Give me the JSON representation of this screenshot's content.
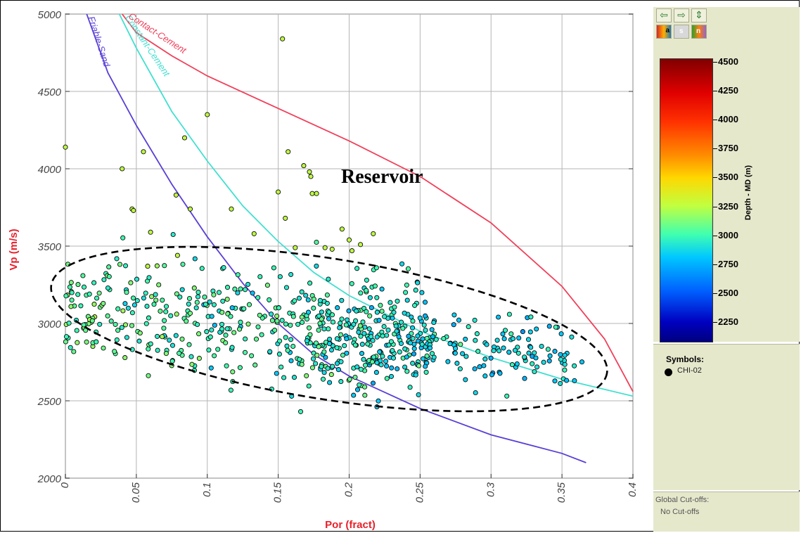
{
  "chart_data": {
    "type": "scatter",
    "xlabel": "Por  (fract)",
    "ylabel": "Vp  (m/s)",
    "xlim": [
      0,
      0.4
    ],
    "ylim": [
      2000,
      5000
    ],
    "x_ticks": [
      "0",
      "0.05",
      "0.1",
      "0.15",
      "0.2",
      "0.25",
      "0.3",
      "0.35",
      "0.4"
    ],
    "y_ticks": [
      "2000",
      "2500",
      "3000",
      "3500",
      "4000",
      "4500",
      "5000"
    ],
    "grid": true,
    "annotation": "Reservoir",
    "curves": [
      {
        "name": "Friable-Sand",
        "color": "#5a3fd6",
        "x": [
          0.015,
          0.03,
          0.05,
          0.075,
          0.1,
          0.125,
          0.15,
          0.175,
          0.2,
          0.25,
          0.3,
          0.35,
          0.367
        ],
        "y": [
          5000,
          4620,
          4280,
          3900,
          3560,
          3260,
          3000,
          2800,
          2660,
          2450,
          2280,
          2160,
          2100
        ]
      },
      {
        "name": "Constant-Cement",
        "color": "#40e0d0",
        "x": [
          0.038,
          0.05,
          0.075,
          0.1,
          0.125,
          0.15,
          0.175,
          0.2,
          0.25,
          0.3,
          0.35,
          0.4
        ],
        "y": [
          5000,
          4780,
          4370,
          4050,
          3760,
          3530,
          3330,
          3180,
          2950,
          2780,
          2640,
          2530
        ]
      },
      {
        "name": "Contact-Cement",
        "color": "#f0405a",
        "x": [
          0.04,
          0.05,
          0.075,
          0.1,
          0.15,
          0.2,
          0.25,
          0.3,
          0.35,
          0.38,
          0.4
        ],
        "y": [
          5000,
          4880,
          4730,
          4600,
          4390,
          4180,
          3950,
          3650,
          3240,
          2900,
          2560
        ]
      }
    ],
    "series": [
      {
        "name": "CHI-02"
      }
    ],
    "outliers": [
      {
        "x": 0.0,
        "y": 4140
      },
      {
        "x": 0.04,
        "y": 4000
      },
      {
        "x": 0.055,
        "y": 4110
      },
      {
        "x": 0.047,
        "y": 3740
      },
      {
        "x": 0.048,
        "y": 3730
      },
      {
        "x": 0.078,
        "y": 3830
      },
      {
        "x": 0.084,
        "y": 4200
      },
      {
        "x": 0.088,
        "y": 3740
      },
      {
        "x": 0.06,
        "y": 3590
      },
      {
        "x": 0.1,
        "y": 4350
      },
      {
        "x": 0.117,
        "y": 3740
      },
      {
        "x": 0.133,
        "y": 3580
      },
      {
        "x": 0.15,
        "y": 3850
      },
      {
        "x": 0.153,
        "y": 4840
      },
      {
        "x": 0.155,
        "y": 3680
      },
      {
        "x": 0.157,
        "y": 4110
      },
      {
        "x": 0.168,
        "y": 4020
      },
      {
        "x": 0.172,
        "y": 3980
      },
      {
        "x": 0.174,
        "y": 3840
      },
      {
        "x": 0.177,
        "y": 3840
      },
      {
        "x": 0.173,
        "y": 3950
      },
      {
        "x": 0.162,
        "y": 3490
      },
      {
        "x": 0.183,
        "y": 3490
      },
      {
        "x": 0.195,
        "y": 3610
      },
      {
        "x": 0.2,
        "y": 3540
      },
      {
        "x": 0.208,
        "y": 3510
      },
      {
        "x": 0.217,
        "y": 3580
      },
      {
        "x": 0.188,
        "y": 3480
      },
      {
        "x": 0.202,
        "y": 3470
      },
      {
        "x": 0.079,
        "y": 3440
      },
      {
        "x": 0.058,
        "y": 3370
      }
    ],
    "point_cloud": {
      "count": 720,
      "x_range": [
        0.0,
        0.365
      ],
      "y_center": 3020,
      "y_spread": 190
    },
    "colorbar": {
      "label": "Depth - MD (m)",
      "ticks": [
        "4500",
        "4250",
        "4000",
        "3750",
        "3500",
        "3250",
        "3000",
        "2750",
        "2500",
        "2250"
      ],
      "range": [
        2100,
        4600
      ]
    }
  },
  "legend": {
    "title": "Symbols:",
    "item": "CHI-02"
  },
  "cutoffs": {
    "title": "Global Cut-offs:",
    "value": "No Cut-offs"
  },
  "toolbar": {
    "left": "⇦",
    "right": "⇨",
    "updown": "⇕",
    "btn_a": "a",
    "btn_s": "s",
    "btn_n": "n"
  }
}
